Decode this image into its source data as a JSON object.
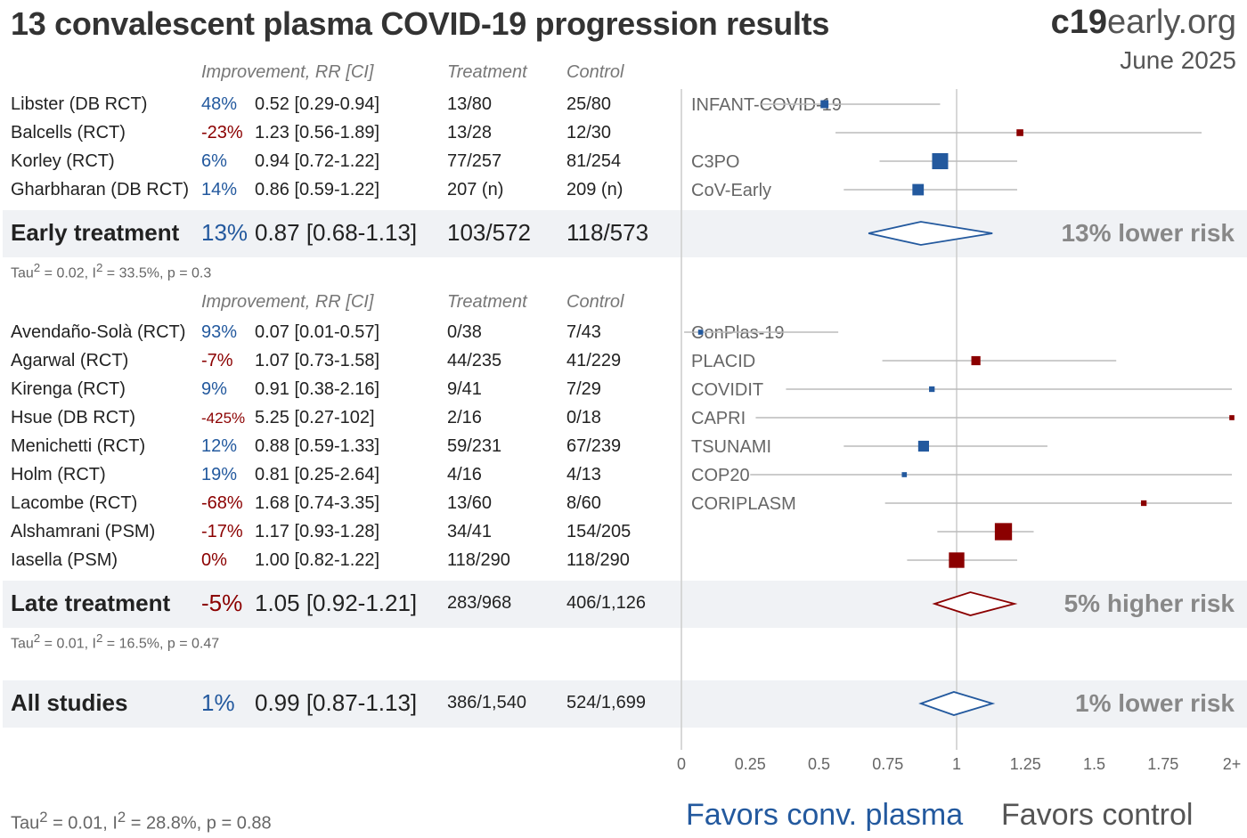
{
  "header": {
    "title": "13 convalescent plasma COVID-19 progression results",
    "brand_bold": "c19",
    "brand_rest": "early.org",
    "date": "June 2025"
  },
  "columns": {
    "improvement": "Improvement, RR [CI]",
    "treatment": "Treatment",
    "control": "Control"
  },
  "groups": [
    {
      "studies": [
        {
          "name": "Libster (DB RCT)",
          "improvement": "48%",
          "rr_ci": "0.52 [0.29-0.94]",
          "treatment": "13/80",
          "control": "25/80",
          "trial": "INFANT-COVID-19",
          "direction": "pos"
        },
        {
          "name": "Balcells (RCT)",
          "improvement": "-23%",
          "rr_ci": "1.23 [0.56-1.89]",
          "treatment": "13/28",
          "control": "12/30",
          "trial": "",
          "direction": "neg"
        },
        {
          "name": "Korley (RCT)",
          "improvement": "6%",
          "rr_ci": "0.94 [0.72-1.22]",
          "treatment": "77/257",
          "control": "81/254",
          "trial": "C3PO",
          "direction": "pos"
        },
        {
          "name": "Gharbharan (DB RCT)",
          "improvement": "14%",
          "rr_ci": "0.86 [0.59-1.22]",
          "treatment": "207 (n)",
          "control": "209 (n)",
          "trial": "CoV-Early",
          "direction": "pos"
        }
      ],
      "summary": {
        "name": "Early treatment",
        "improvement": "13%",
        "rr_ci": "0.87 [0.68-1.13]",
        "treatment": "103/572",
        "control": "118/573",
        "risk_label": "13% lower risk",
        "direction": "pos"
      },
      "stats": {
        "tau": "Tau",
        "rest1": " = 0.02, I",
        "rest2": " = 33.5%, p = 0.3"
      }
    },
    {
      "studies": [
        {
          "name": "Avendaño-Solà (RCT)",
          "improvement": "93%",
          "rr_ci": "0.07 [0.01-0.57]",
          "treatment": "0/38",
          "control": "7/43",
          "trial": "ConPlas-19",
          "direction": "pos"
        },
        {
          "name": "Agarwal (RCT)",
          "improvement": "-7%",
          "rr_ci": "1.07 [0.73-1.58]",
          "treatment": "44/235",
          "control": "41/229",
          "trial": "PLACID",
          "direction": "neg"
        },
        {
          "name": "Kirenga (RCT)",
          "improvement": "9%",
          "rr_ci": "0.91 [0.38-2.16]",
          "treatment": "9/41",
          "control": "7/29",
          "trial": "COVIDIT",
          "direction": "pos"
        },
        {
          "name": "Hsue (DB RCT)",
          "improvement": "-425%",
          "rr_ci": "5.25 [0.27-102]",
          "treatment": "2/16",
          "control": "0/18",
          "trial": "CAPRI",
          "direction": "neg"
        },
        {
          "name": "Menichetti (RCT)",
          "improvement": "12%",
          "rr_ci": "0.88 [0.59-1.33]",
          "treatment": "59/231",
          "control": "67/239",
          "trial": "TSUNAMI",
          "direction": "pos"
        },
        {
          "name": "Holm (RCT)",
          "improvement": "19%",
          "rr_ci": "0.81 [0.25-2.64]",
          "treatment": "4/16",
          "control": "4/13",
          "trial": "COP20",
          "direction": "pos"
        },
        {
          "name": "Lacombe (RCT)",
          "improvement": "-68%",
          "rr_ci": "1.68 [0.74-3.35]",
          "treatment": "13/60",
          "control": "8/60",
          "trial": "CORIPLASM",
          "direction": "neg"
        },
        {
          "name": "Alshamrani (PSM)",
          "improvement": "-17%",
          "rr_ci": "1.17 [0.93-1.28]",
          "treatment": "34/41",
          "control": "154/205",
          "trial": "",
          "direction": "neg"
        },
        {
          "name": "Iasella (PSM)",
          "improvement": "0%",
          "rr_ci": "1.00 [0.82-1.22]",
          "treatment": "118/290",
          "control": "118/290",
          "trial": "",
          "direction": "neg"
        }
      ],
      "summary": {
        "name": "Late treatment",
        "improvement": "-5%",
        "rr_ci": "1.05 [0.92-1.21]",
        "treatment": "283/968",
        "control": "406/1,126",
        "risk_label": "5% higher risk",
        "direction": "neg"
      },
      "stats": {
        "tau": "Tau",
        "rest1": " = 0.01, I",
        "rest2": " = 16.5%, p = 0.47"
      }
    }
  ],
  "overall": {
    "name": "All studies",
    "improvement": "1%",
    "rr_ci": "0.99 [0.87-1.13]",
    "treatment": "386/1,540",
    "control": "524/1,699",
    "risk_label": "1% lower risk",
    "direction": "pos"
  },
  "overall_stats": {
    "tau": "Tau",
    "rest1": " = 0.01, I",
    "rest2": " = 28.8%, p = 0.88"
  },
  "favors": {
    "left": "Favors conv. plasma",
    "right": "Favors control"
  },
  "colors": {
    "favorable": "#23599e",
    "unfavorable": "#8b0000",
    "ci_line": "#bbbbbb",
    "band": "#f0f2f5"
  },
  "chart_data": {
    "type": "forest",
    "x_scale": "linear",
    "xlim": [
      0,
      2
    ],
    "x_ticks": [
      "0",
      "0.25",
      "0.5",
      "0.75",
      "1",
      "1.25",
      "1.5",
      "1.75",
      "2+"
    ],
    "reference_line": 1,
    "studies": [
      {
        "label": "Libster (DB RCT)",
        "rr": 0.52,
        "lo": 0.29,
        "hi": 0.94,
        "weight": 0.3
      },
      {
        "label": "Balcells (RCT)",
        "rr": 1.23,
        "lo": 0.56,
        "hi": 1.89,
        "weight": 0.2
      },
      {
        "label": "Korley (RCT)",
        "rr": 0.94,
        "lo": 0.72,
        "hi": 1.22,
        "weight": 1.0
      },
      {
        "label": "Gharbharan (DB RCT)",
        "rr": 0.86,
        "lo": 0.59,
        "hi": 1.22,
        "weight": 0.6
      },
      {
        "label": "Avendaño-Solà (RCT)",
        "rr": 0.07,
        "lo": 0.01,
        "hi": 0.57,
        "weight": 0.05
      },
      {
        "label": "Agarwal (RCT)",
        "rr": 1.07,
        "lo": 0.73,
        "hi": 1.58,
        "weight": 0.4
      },
      {
        "label": "Kirenga (RCT)",
        "rr": 0.91,
        "lo": 0.38,
        "hi": 2.16,
        "weight": 0.1
      },
      {
        "label": "Hsue (DB RCT)",
        "rr": 5.25,
        "lo": 0.27,
        "hi": 102,
        "weight": 0.05
      },
      {
        "label": "Menichetti (RCT)",
        "rr": 0.88,
        "lo": 0.59,
        "hi": 1.33,
        "weight": 0.55
      },
      {
        "label": "Holm (RCT)",
        "rr": 0.81,
        "lo": 0.25,
        "hi": 2.64,
        "weight": 0.05
      },
      {
        "label": "Lacombe (RCT)",
        "rr": 1.68,
        "lo": 0.74,
        "hi": 3.35,
        "weight": 0.1
      },
      {
        "label": "Alshamrani (PSM)",
        "rr": 1.17,
        "lo": 0.93,
        "hi": 1.28,
        "weight": 1.1
      },
      {
        "label": "Iasella (PSM)",
        "rr": 1.0,
        "lo": 0.82,
        "hi": 1.22,
        "weight": 0.95
      }
    ],
    "summaries": [
      {
        "label": "Early treatment",
        "rr": 0.87,
        "lo": 0.68,
        "hi": 1.13
      },
      {
        "label": "Late treatment",
        "rr": 1.05,
        "lo": 0.92,
        "hi": 1.21
      },
      {
        "label": "All studies",
        "rr": 0.99,
        "lo": 0.87,
        "hi": 1.13
      }
    ]
  }
}
